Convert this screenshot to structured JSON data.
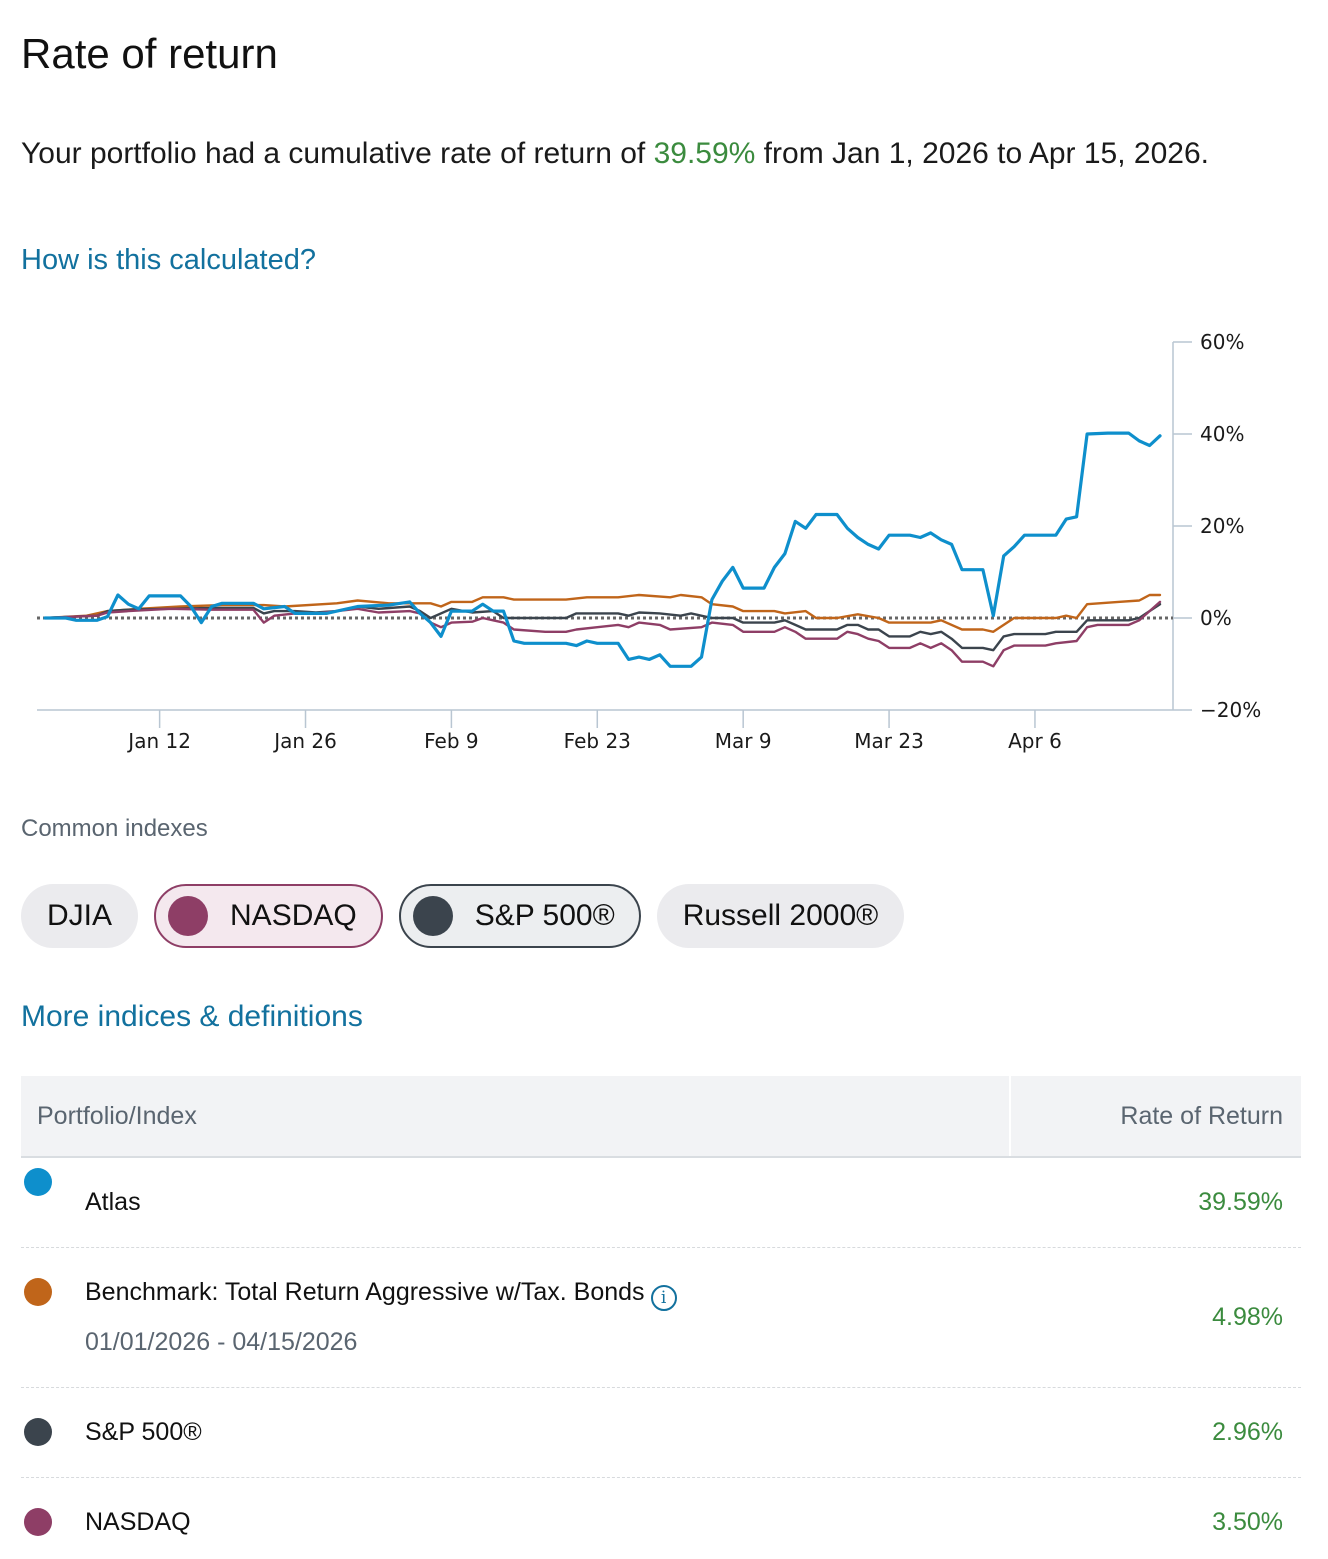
{
  "page": {
    "title": "Rate of return",
    "summary_before": "Your portfolio had a cumulative rate of return of ",
    "summary_pct": "39.59%",
    "summary_after": " from Jan 1, 2026 to Apr 15, 2026.",
    "calc_link": "How is this calculated?"
  },
  "indexes": {
    "label": "Common indexes",
    "chips": [
      "DJIA",
      "NASDAQ",
      "S&P 500®",
      "Russell 2000®"
    ],
    "more_link": "More indices & definitions"
  },
  "table": {
    "col_left": "Portfolio/Index",
    "col_right": "Rate of Return",
    "rows": [
      {
        "name": "Atlas",
        "sub": "",
        "value": "39.59%",
        "color": "#0e8fcc"
      },
      {
        "name": "Benchmark: Total Return Aggressive w/Tax. Bonds",
        "sub": "01/01/2026 - 04/15/2026",
        "value": "4.98%",
        "color": "#c0651a"
      },
      {
        "name": "S&P 500®",
        "sub": "",
        "value": "2.96%",
        "color": "#3b444d"
      },
      {
        "name": "NASDAQ",
        "sub": "",
        "value": "3.50%",
        "color": "#8e3e66"
      }
    ]
  },
  "chart_data": {
    "type": "line",
    "title": "",
    "xlabel": "",
    "ylabel": "",
    "x_ticks": [
      "Jan 12",
      "Jan 26",
      "Feb 9",
      "Feb 23",
      "Mar 9",
      "Mar 23",
      "Apr 6"
    ],
    "x_tick_days": [
      11,
      25,
      39,
      53,
      67,
      81,
      95
    ],
    "y_ticks": [
      "60%",
      "40%",
      "20%",
      "0%",
      "−20%"
    ],
    "y_tick_values": [
      60,
      40,
      20,
      0,
      -20
    ],
    "xlim": [
      0,
      107
    ],
    "ylim": [
      -20,
      60
    ],
    "baseline": 0,
    "series": [
      {
        "name": "Atlas",
        "color": "#0e8fcc",
        "width": 3.2,
        "points": [
          [
            0,
            0
          ],
          [
            2,
            0
          ],
          [
            3,
            -0.5
          ],
          [
            5,
            -0.5
          ],
          [
            6,
            0.3
          ],
          [
            7,
            5
          ],
          [
            8,
            3
          ],
          [
            9,
            2
          ],
          [
            10,
            4.8
          ],
          [
            13,
            4.8
          ],
          [
            14,
            2.5
          ],
          [
            15,
            -1
          ],
          [
            16,
            2.5
          ],
          [
            17,
            3.2
          ],
          [
            20,
            3.2
          ],
          [
            21,
            2
          ],
          [
            23,
            2.5
          ],
          [
            24,
            1
          ],
          [
            27,
            1
          ],
          [
            30,
            2.5
          ],
          [
            33,
            2.8
          ],
          [
            35,
            3.5
          ],
          [
            36,
            1
          ],
          [
            37,
            -1
          ],
          [
            38,
            -4
          ],
          [
            39,
            1.5
          ],
          [
            41,
            1.5
          ],
          [
            42,
            3
          ],
          [
            43,
            1.5
          ],
          [
            44,
            1.5
          ],
          [
            45,
            -5
          ],
          [
            46,
            -5.5
          ],
          [
            50,
            -5.5
          ],
          [
            51,
            -6
          ],
          [
            52,
            -5
          ],
          [
            53,
            -5.5
          ],
          [
            55,
            -5.5
          ],
          [
            56,
            -9
          ],
          [
            57,
            -8.5
          ],
          [
            58,
            -9
          ],
          [
            59,
            -8
          ],
          [
            60,
            -10.5
          ],
          [
            62,
            -10.5
          ],
          [
            63,
            -8.5
          ],
          [
            64,
            4
          ],
          [
            65,
            8
          ],
          [
            66,
            11
          ],
          [
            67,
            6.5
          ],
          [
            69,
            6.5
          ],
          [
            70,
            11
          ],
          [
            71,
            14
          ],
          [
            72,
            21
          ],
          [
            73,
            19.5
          ],
          [
            74,
            22.5
          ],
          [
            76,
            22.5
          ],
          [
            77,
            19.5
          ],
          [
            78,
            17.5
          ],
          [
            79,
            16
          ],
          [
            80,
            15
          ],
          [
            81,
            18
          ],
          [
            83,
            18
          ],
          [
            84,
            17.5
          ],
          [
            85,
            18.5
          ],
          [
            86,
            17
          ],
          [
            87,
            16
          ],
          [
            88,
            10.5
          ],
          [
            90,
            10.5
          ],
          [
            91,
            0.5
          ],
          [
            92,
            13.5
          ],
          [
            93,
            15.5
          ],
          [
            94,
            18
          ],
          [
            97,
            18
          ],
          [
            98,
            21.5
          ],
          [
            99,
            22
          ],
          [
            100,
            40
          ],
          [
            102,
            40.2
          ],
          [
            104,
            40.2
          ],
          [
            105,
            38.5
          ],
          [
            106,
            37.5
          ],
          [
            107,
            39.6
          ]
        ]
      },
      {
        "name": "Benchmark: Total Return Aggressive w/Tax. Bonds",
        "color": "#c0651a",
        "width": 2.4,
        "points": [
          [
            0,
            0
          ],
          [
            4,
            0.5
          ],
          [
            6,
            1.5
          ],
          [
            9,
            2
          ],
          [
            13,
            2.5
          ],
          [
            17,
            2.8
          ],
          [
            21,
            2.8
          ],
          [
            23,
            2.5
          ],
          [
            28,
            3.2
          ],
          [
            30,
            3.8
          ],
          [
            33,
            3.2
          ],
          [
            37,
            3.2
          ],
          [
            38,
            2.5
          ],
          [
            39,
            3.5
          ],
          [
            41,
            3.5
          ],
          [
            42,
            4.5
          ],
          [
            44,
            4.5
          ],
          [
            45,
            4
          ],
          [
            50,
            4
          ],
          [
            52,
            4.5
          ],
          [
            55,
            4.5
          ],
          [
            57,
            5
          ],
          [
            60,
            4.5
          ],
          [
            61,
            5
          ],
          [
            63,
            4.5
          ],
          [
            64,
            3
          ],
          [
            66,
            2.5
          ],
          [
            67,
            1.5
          ],
          [
            70,
            1.5
          ],
          [
            71,
            1
          ],
          [
            73,
            1.5
          ],
          [
            74,
            0
          ],
          [
            76,
            0
          ],
          [
            78,
            0.8
          ],
          [
            80,
            0
          ],
          [
            81,
            -1
          ],
          [
            85,
            -1
          ],
          [
            86,
            -0.5
          ],
          [
            88,
            -2.5
          ],
          [
            90,
            -2.5
          ],
          [
            91,
            -3
          ],
          [
            93,
            0
          ],
          [
            97,
            0
          ],
          [
            98,
            0.5
          ],
          [
            99,
            0
          ],
          [
            100,
            3
          ],
          [
            103,
            3.5
          ],
          [
            105,
            3.8
          ],
          [
            106,
            5
          ],
          [
            107,
            5
          ]
        ]
      },
      {
        "name": "S&P 500®",
        "color": "#3b444d",
        "width": 2.4,
        "points": [
          [
            0,
            0
          ],
          [
            3,
            0.3
          ],
          [
            5,
            0.5
          ],
          [
            6,
            1.5
          ],
          [
            8,
            1.8
          ],
          [
            12,
            2
          ],
          [
            16,
            2.2
          ],
          [
            20,
            2.2
          ],
          [
            21,
            1
          ],
          [
            22,
            1.5
          ],
          [
            24,
            1.5
          ],
          [
            26,
            1.2
          ],
          [
            28,
            1.5
          ],
          [
            30,
            2.5
          ],
          [
            32,
            2
          ],
          [
            35,
            2.5
          ],
          [
            36,
            1.5
          ],
          [
            37,
            0
          ],
          [
            39,
            2
          ],
          [
            41,
            1.2
          ],
          [
            43,
            1.5
          ],
          [
            44,
            0
          ],
          [
            50,
            0
          ],
          [
            51,
            1
          ],
          [
            53,
            1
          ],
          [
            55,
            1
          ],
          [
            56,
            0.5
          ],
          [
            57,
            1.2
          ],
          [
            59,
            1
          ],
          [
            61,
            0.5
          ],
          [
            62,
            1
          ],
          [
            64,
            0
          ],
          [
            66,
            0
          ],
          [
            67,
            -1
          ],
          [
            70,
            -1
          ],
          [
            71,
            -0.5
          ],
          [
            72,
            -1.5
          ],
          [
            73,
            -2.5
          ],
          [
            76,
            -2.5
          ],
          [
            77,
            -1.5
          ],
          [
            78,
            -1.5
          ],
          [
            79,
            -2.5
          ],
          [
            80,
            -2.5
          ],
          [
            81,
            -4
          ],
          [
            83,
            -4
          ],
          [
            84,
            -3
          ],
          [
            85,
            -3.5
          ],
          [
            86,
            -3
          ],
          [
            87,
            -4.5
          ],
          [
            88,
            -6.5
          ],
          [
            90,
            -6.5
          ],
          [
            91,
            -7
          ],
          [
            92,
            -4
          ],
          [
            93,
            -3.5
          ],
          [
            96,
            -3.5
          ],
          [
            97,
            -3
          ],
          [
            99,
            -3
          ],
          [
            100,
            -0.5
          ],
          [
            104,
            -0.5
          ],
          [
            105,
            0
          ],
          [
            107,
            3
          ]
        ]
      },
      {
        "name": "NASDAQ",
        "color": "#8e3e66",
        "width": 2.4,
        "points": [
          [
            0,
            0
          ],
          [
            3,
            0.3
          ],
          [
            5,
            0.5
          ],
          [
            6,
            1.2
          ],
          [
            8,
            1.5
          ],
          [
            12,
            2
          ],
          [
            16,
            1.8
          ],
          [
            20,
            1.8
          ],
          [
            21,
            -1
          ],
          [
            22,
            0.5
          ],
          [
            24,
            1
          ],
          [
            26,
            1
          ],
          [
            28,
            1.5
          ],
          [
            30,
            2
          ],
          [
            32,
            1.2
          ],
          [
            35,
            1.5
          ],
          [
            36,
            1
          ],
          [
            37,
            -1
          ],
          [
            38,
            -2
          ],
          [
            39,
            -1
          ],
          [
            41,
            -0.8
          ],
          [
            42,
            0
          ],
          [
            43,
            -0.5
          ],
          [
            44,
            -1
          ],
          [
            45,
            -2.5
          ],
          [
            48,
            -3
          ],
          [
            50,
            -3
          ],
          [
            51,
            -2.5
          ],
          [
            53,
            -2
          ],
          [
            55,
            -1.5
          ],
          [
            56,
            -2
          ],
          [
            57,
            -1
          ],
          [
            59,
            -1.5
          ],
          [
            60,
            -2.5
          ],
          [
            63,
            -2
          ],
          [
            64,
            -1
          ],
          [
            66,
            -1.5
          ],
          [
            67,
            -3
          ],
          [
            70,
            -3
          ],
          [
            71,
            -2
          ],
          [
            72,
            -3
          ],
          [
            73,
            -4.5
          ],
          [
            76,
            -4.5
          ],
          [
            77,
            -3
          ],
          [
            78,
            -3.5
          ],
          [
            79,
            -4.5
          ],
          [
            80,
            -5
          ],
          [
            81,
            -6.5
          ],
          [
            83,
            -6.5
          ],
          [
            84,
            -5.5
          ],
          [
            85,
            -6.5
          ],
          [
            86,
            -5.5
          ],
          [
            87,
            -7
          ],
          [
            88,
            -9.5
          ],
          [
            90,
            -9.5
          ],
          [
            91,
            -10.5
          ],
          [
            92,
            -7
          ],
          [
            93,
            -6
          ],
          [
            96,
            -6
          ],
          [
            97,
            -5.5
          ],
          [
            99,
            -5
          ],
          [
            100,
            -2
          ],
          [
            101,
            -1.5
          ],
          [
            104,
            -1.5
          ],
          [
            105,
            -0.5
          ],
          [
            107,
            3.5
          ]
        ]
      }
    ]
  }
}
